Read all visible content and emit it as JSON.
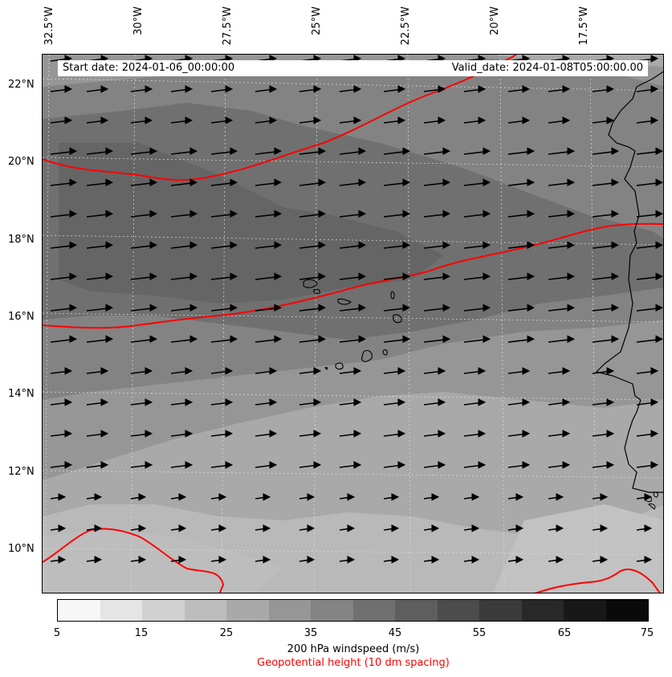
{
  "map": {
    "start_date": "Start date: 2024-01-06_00:00:00",
    "valid_date": "Valid_date: 2024-01-08T05:00:00.00",
    "lon_labels": [
      "32.5°W",
      "30°W",
      "27.5°W",
      "25°W",
      "22.5°W",
      "20°W",
      "17.5°W"
    ],
    "lat_labels": [
      "22°N",
      "20°N",
      "18°N",
      "16°N",
      "14°N",
      "12°N",
      "10°N"
    ],
    "field": "200 hPa windspeed (m/s)",
    "contour_field": "Geopotential height (10 dm spacing)",
    "contour_color": "#ff0000",
    "wind_direction": "westerly (arrows pointing east)"
  },
  "colorbar": {
    "ticks": [
      "5",
      "15",
      "25",
      "35",
      "45",
      "55",
      "65",
      "75"
    ],
    "levels": [
      5,
      10,
      15,
      20,
      25,
      30,
      35,
      40,
      45,
      50,
      55,
      60,
      65,
      70,
      75
    ],
    "colors": [
      "#f7f7f7",
      "#e5e5e5",
      "#d1d1d1",
      "#bdbdbd",
      "#a9a9a9",
      "#969696",
      "#838383",
      "#707070",
      "#5e5e5e",
      "#4c4c4c",
      "#3a3a3a",
      "#282828",
      "#181818",
      "#0a0a0a"
    ],
    "label": "200 hPa windspeed (m/s)",
    "secondary_label": "Geopotential height (10 dm spacing)"
  }
}
